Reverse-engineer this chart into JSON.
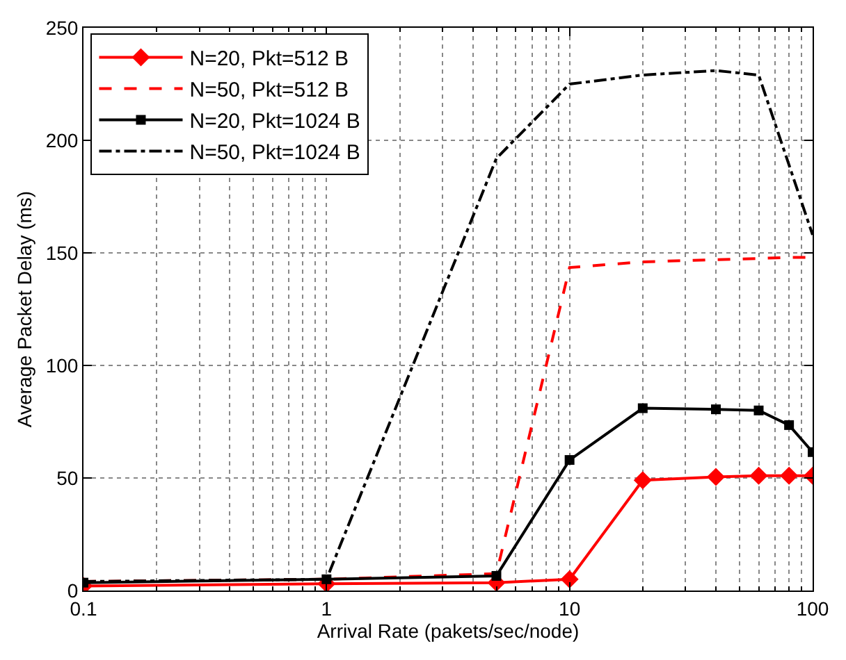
{
  "chart_data": {
    "type": "line",
    "xlabel": "Arrival Rate (pakets/sec/node)",
    "ylabel": "Average Packet Delay (ms)",
    "log": "x",
    "x": [
      0.1,
      1,
      5,
      10,
      20,
      40,
      60,
      80,
      100
    ],
    "xlim": [
      0.1,
      100
    ],
    "xticks": [
      0.1,
      1,
      10,
      100
    ],
    "ylim": [
      0,
      250
    ],
    "yticks": [
      0,
      50,
      100,
      150,
      200,
      250
    ],
    "grid": true,
    "legend": "top left",
    "series": [
      {
        "name": "N=20, Pkt=512 B",
        "color": "#ff0000",
        "marker": "diamond",
        "line_style": "solid",
        "values": [
          2,
          3,
          3.5,
          5,
          49,
          50.5,
          51,
          51,
          51
        ]
      },
      {
        "name": "N=50, Pkt=512 B",
        "color": "#ff0000",
        "marker": "none",
        "line_style": "dashed",
        "values": [
          4,
          5,
          7.5,
          143.5,
          146,
          147,
          147.5,
          148,
          148
        ]
      },
      {
        "name": "N=20, Pkt=1024 B",
        "color": "#000000",
        "marker": "square",
        "line_style": "solid",
        "values": [
          3.5,
          5,
          6.5,
          58,
          81,
          80.5,
          80,
          73.5,
          61.5
        ]
      },
      {
        "name": "N=50, Pkt=1024 B",
        "color": "#000000",
        "marker": "none",
        "line_style": "dashdot",
        "values": [
          4,
          5,
          192,
          225,
          229,
          231,
          229,
          null,
          158
        ]
      }
    ]
  }
}
